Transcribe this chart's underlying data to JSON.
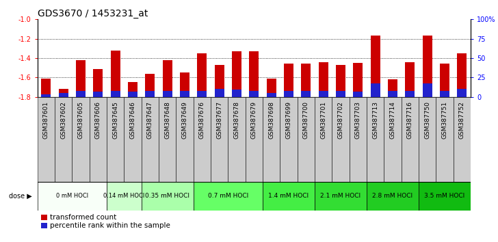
{
  "title": "GDS3670 / 1453231_at",
  "samples": [
    "GSM387601",
    "GSM387602",
    "GSM387605",
    "GSM387606",
    "GSM387645",
    "GSM387646",
    "GSM387647",
    "GSM387648",
    "GSM387649",
    "GSM387676",
    "GSM387677",
    "GSM387678",
    "GSM387679",
    "GSM387698",
    "GSM387699",
    "GSM387700",
    "GSM387701",
    "GSM387702",
    "GSM387703",
    "GSM387713",
    "GSM387714",
    "GSM387716",
    "GSM387750",
    "GSM387751",
    "GSM387752"
  ],
  "transformed_counts": [
    -1.61,
    -1.72,
    -1.42,
    -1.51,
    -1.32,
    -1.65,
    -1.56,
    -1.42,
    -1.55,
    -1.35,
    -1.47,
    -1.33,
    -1.33,
    -1.61,
    -1.46,
    -1.46,
    -1.44,
    -1.47,
    -1.45,
    -1.17,
    -1.62,
    -1.44,
    -1.17,
    -1.46,
    -1.35
  ],
  "percentile_ranks": [
    3,
    5,
    8,
    7,
    8,
    7,
    8,
    8,
    8,
    8,
    10,
    9,
    8,
    5,
    8,
    8,
    8,
    8,
    7,
    17,
    8,
    8,
    17,
    8,
    10
  ],
  "dose_groups": [
    {
      "label": "0 mM HOCl",
      "start": 0,
      "end": 4,
      "color": "#f0fff0"
    },
    {
      "label": "0.14 mM HOCl",
      "start": 4,
      "end": 6,
      "color": "#ccffcc"
    },
    {
      "label": "0.35 mM HOCl",
      "start": 6,
      "end": 9,
      "color": "#aaffaa"
    },
    {
      "label": "0.7 mM HOCl",
      "start": 9,
      "end": 13,
      "color": "#66ff66"
    },
    {
      "label": "1.4 mM HOCl",
      "start": 13,
      "end": 16,
      "color": "#44ee44"
    },
    {
      "label": "2.1 mM HOCl",
      "start": 16,
      "end": 19,
      "color": "#33dd33"
    },
    {
      "label": "2.8 mM HOCl",
      "start": 19,
      "end": 22,
      "color": "#22cc22"
    },
    {
      "label": "3.5 mM HOCl",
      "start": 22,
      "end": 25,
      "color": "#11bb11"
    }
  ],
  "ymin": -1.8,
  "ymax": -1.0,
  "yticks_left": [
    -1.0,
    -1.2,
    -1.4,
    -1.6,
    -1.8
  ],
  "right_yticks_pct": [
    0,
    25,
    50,
    75,
    100
  ],
  "bar_color": "#cc0000",
  "blue_color": "#2222cc",
  "title_fontsize": 10,
  "tick_fontsize": 7,
  "label_fontsize": 6.5,
  "dose_fontsize": 6.5,
  "legend_fontsize": 7.5
}
